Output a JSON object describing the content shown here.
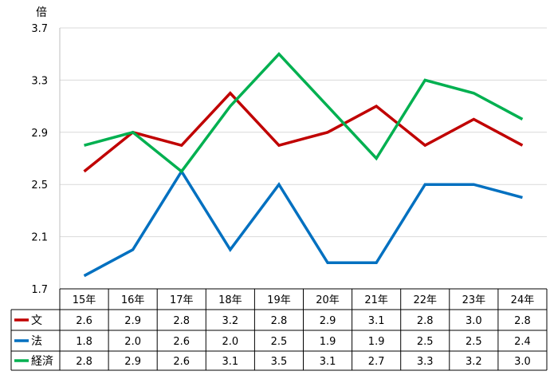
{
  "chart_data": {
    "type": "line",
    "y_unit_label": "倍",
    "categories": [
      "15年",
      "16年",
      "17年",
      "18年",
      "19年",
      "20年",
      "21年",
      "22年",
      "23年",
      "24年"
    ],
    "y_ticks": [
      "1.7",
      "2.1",
      "2.5",
      "2.9",
      "3.3",
      "3.7"
    ],
    "ylim": [
      1.7,
      3.7
    ],
    "grid": "horizontal",
    "legend": "data-table-left",
    "series": [
      {
        "name": "文",
        "color": "#c00000",
        "values": [
          2.6,
          2.9,
          2.8,
          3.2,
          2.8,
          2.9,
          3.1,
          2.8,
          3.0,
          2.8
        ],
        "table_values": [
          "2.6",
          "2.9",
          "2.8",
          "3.2",
          "2.8",
          "2.9",
          "3.1",
          "2.8",
          "3.0",
          "2.8"
        ]
      },
      {
        "name": "法",
        "color": "#0070c0",
        "values": [
          1.8,
          2.0,
          2.6,
          2.0,
          2.5,
          1.9,
          1.9,
          2.5,
          2.5,
          2.4
        ],
        "table_values": [
          "1.8",
          "2.0",
          "2.6",
          "2.0",
          "2.5",
          "1.9",
          "1.9",
          "2.5",
          "2.5",
          "2.4"
        ]
      },
      {
        "name": "経済",
        "color": "#00b050",
        "values": [
          2.8,
          2.9,
          2.6,
          3.1,
          3.5,
          3.1,
          2.7,
          3.3,
          3.2,
          3.0
        ],
        "table_values": [
          "2.8",
          "2.9",
          "2.6",
          "3.1",
          "3.5",
          "3.1",
          "2.7",
          "3.3",
          "3.2",
          "3.0"
        ]
      }
    ]
  }
}
